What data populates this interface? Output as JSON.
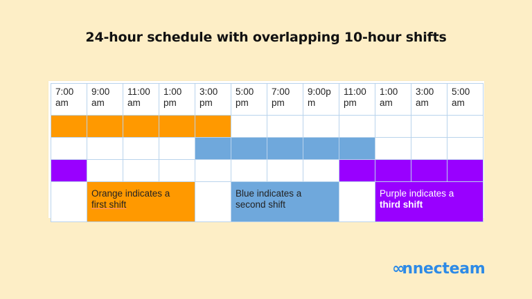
{
  "title": "24-hour schedule with overlapping 10-hour shifts",
  "table": {
    "headers": [
      {
        "l1": "7:00",
        "l2": "am"
      },
      {
        "l1": "9:00",
        "l2": "am"
      },
      {
        "l1": "11:00",
        "l2": "am"
      },
      {
        "l1": "1:00",
        "l2": "pm"
      },
      {
        "l1": "3:00",
        "l2": "pm"
      },
      {
        "l1": "5:00",
        "l2": "pm"
      },
      {
        "l1": "7:00",
        "l2": "pm"
      },
      {
        "l1": "9:00p",
        "l2": "m"
      },
      {
        "l1": "11:00",
        "l2": "pm"
      },
      {
        "l1": "1:00",
        "l2": "am"
      },
      {
        "l1": "3:00",
        "l2": "am"
      },
      {
        "l1": "5:00",
        "l2": "am"
      }
    ],
    "rows": [
      {
        "shift": "first",
        "color": "#ff9900",
        "filled_columns": [
          0,
          1,
          2,
          3,
          4
        ]
      },
      {
        "shift": "second",
        "color": "#6fa8dc",
        "filled_columns": [
          4,
          5,
          6,
          7,
          8
        ]
      },
      {
        "shift": "third",
        "color": "#9900ff",
        "filled_columns": [
          0,
          8,
          9,
          10,
          11
        ]
      }
    ]
  },
  "legend": {
    "orange": {
      "line1": "Orange indicates a",
      "line2": "first shift"
    },
    "blue": {
      "line1": "Blue indicates a",
      "line2": "second shift"
    },
    "purple": {
      "line1": "Purple indicates a",
      "line2": "third shift"
    }
  },
  "colors": {
    "orange": "#ff9900",
    "blue": "#6fa8dc",
    "purple": "#9900ff",
    "background": "#fdeec6",
    "brand": "#2d8ae6"
  },
  "brand": {
    "logo_symbol": "∞",
    "logo_text": "nnecteam"
  }
}
